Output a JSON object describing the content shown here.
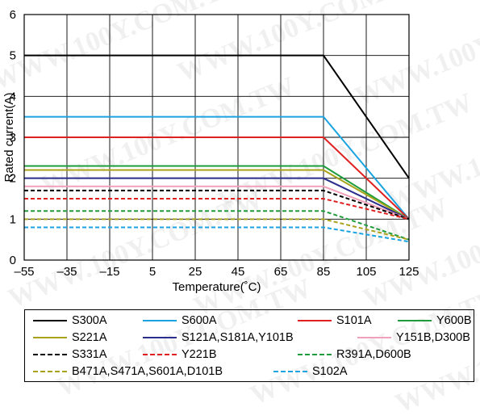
{
  "watermark": "WWW.100Y.COM.TW",
  "chart_data": {
    "type": "line",
    "xlabel": "Temperature(˚C)",
    "ylabel": "Rated current(A)",
    "xlim": [
      -55,
      125
    ],
    "ylim": [
      0,
      6
    ],
    "x_ticks": [
      "–55",
      "–35",
      "–15",
      "5",
      "25",
      "45",
      "65",
      "85",
      "105",
      "125"
    ],
    "y_ticks": [
      "0",
      "1",
      "2",
      "3",
      "4",
      "5",
      "6"
    ],
    "grid": true,
    "legend_placement": "bottom",
    "series": [
      {
        "name": "S300A",
        "color": "#000000",
        "dashed": false,
        "x": [
          -55,
          85,
          125
        ],
        "y": [
          5.0,
          5.0,
          2.0
        ]
      },
      {
        "name": "S600A",
        "color": "#1aa3e0",
        "dashed": false,
        "x": [
          -55,
          85,
          125
        ],
        "y": [
          3.5,
          3.5,
          1.0
        ]
      },
      {
        "name": "S101A",
        "color": "#e02020",
        "dashed": false,
        "x": [
          -55,
          85,
          125
        ],
        "y": [
          3.0,
          3.0,
          1.0
        ]
      },
      {
        "name": "Y600B",
        "color": "#1e9c3c",
        "dashed": false,
        "x": [
          -55,
          85,
          125
        ],
        "y": [
          2.3,
          2.3,
          1.0
        ]
      },
      {
        "name": "S221A",
        "color": "#a8a31a",
        "dashed": false,
        "x": [
          -55,
          85,
          125
        ],
        "y": [
          2.2,
          2.2,
          1.0
        ]
      },
      {
        "name": "S121A,S181A,Y101B",
        "color": "#2a2d8c",
        "dashed": false,
        "x": [
          -55,
          85,
          125
        ],
        "y": [
          2.0,
          2.0,
          1.0
        ]
      },
      {
        "name": "Y151B,D300B",
        "color": "#f0a0b8",
        "dashed": false,
        "x": [
          -55,
          85,
          125
        ],
        "y": [
          1.8,
          1.8,
          1.0
        ]
      },
      {
        "name": "S331A",
        "color": "#000000",
        "dashed": true,
        "x": [
          -55,
          85,
          125
        ],
        "y": [
          1.7,
          1.7,
          1.0
        ]
      },
      {
        "name": "Y221B",
        "color": "#e02020",
        "dashed": true,
        "x": [
          -55,
          85,
          125
        ],
        "y": [
          1.5,
          1.5,
          1.0
        ]
      },
      {
        "name": "R391A,D600B",
        "color": "#1e9c3c",
        "dashed": true,
        "x": [
          -55,
          85,
          125
        ],
        "y": [
          1.2,
          1.2,
          0.5
        ]
      },
      {
        "name": "B471A,S471A,S601A,D101B",
        "color": "#a8a31a",
        "dashed": true,
        "x": [
          -55,
          85,
          125
        ],
        "y": [
          1.0,
          1.0,
          0.5
        ]
      },
      {
        "name": "S102A",
        "color": "#1aa3e0",
        "dashed": true,
        "x": [
          -55,
          85,
          125
        ],
        "y": [
          0.8,
          0.8,
          0.45
        ]
      }
    ]
  }
}
